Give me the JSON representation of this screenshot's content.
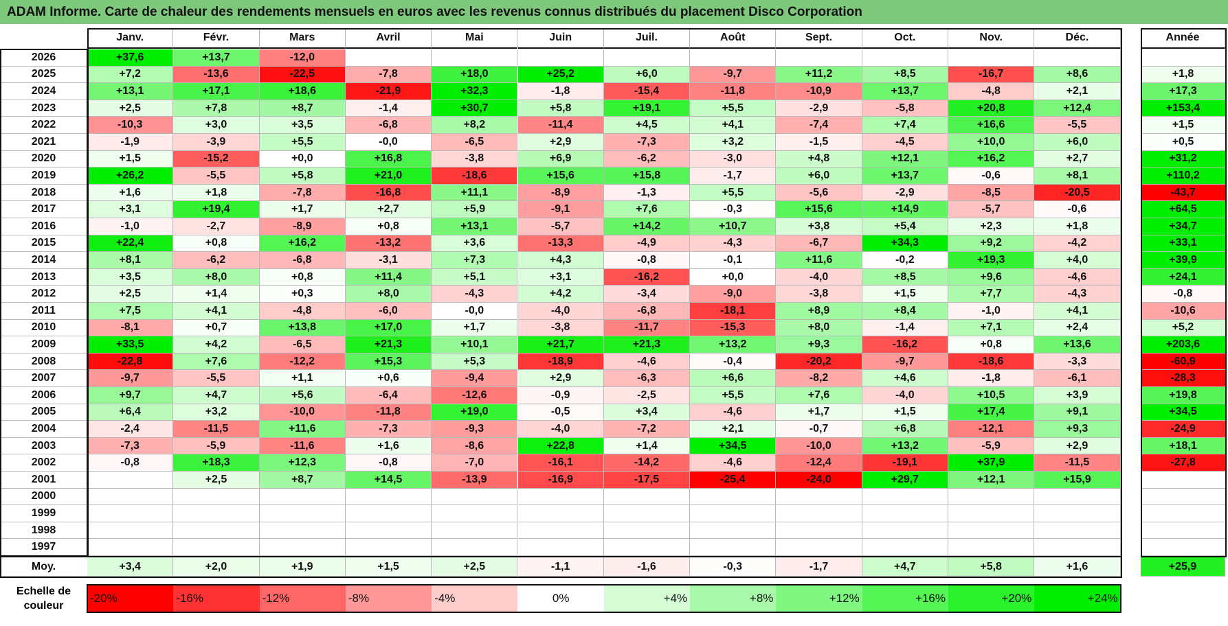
{
  "title": "ADAM Informe. Carte de chaleur des rendements mensuels en euros avec les revenus connus distribués du placement Disco Corporation",
  "colors": {
    "title_bg": "#7dc87a",
    "positive_max": "#00ee00",
    "negative_max": "#ff0000",
    "neutral": "#ffffff"
  },
  "chart_data": {
    "type": "heatmap",
    "title": "ADAM Informe. Carte de chaleur des rendements mensuels en euros avec les revenus connus distribués du placement Disco Corporation",
    "months": [
      "Janv.",
      "Févr.",
      "Mars",
      "Avril",
      "Mai",
      "Juin",
      "Juil.",
      "Août",
      "Sept.",
      "Oct.",
      "Nov.",
      "Déc."
    ],
    "year_header": "Année",
    "rows": [
      {
        "year": "2026",
        "values": [
          "+37,6",
          "+13,7",
          "-12,0",
          "",
          "",
          "",
          "",
          "",
          "",
          "",
          "",
          ""
        ],
        "annual": ""
      },
      {
        "year": "2025",
        "values": [
          "+7,2",
          "-13,6",
          "-22,5",
          "-7,8",
          "+18,0",
          "+25,2",
          "+6,0",
          "-9,7",
          "+11,2",
          "+8,5",
          "-16,7",
          "+8,6"
        ],
        "annual": "+1,8"
      },
      {
        "year": "2024",
        "values": [
          "+13,1",
          "+17,1",
          "+18,6",
          "-21,9",
          "+32,3",
          "-1,8",
          "-15,4",
          "-11,8",
          "-10,9",
          "+13,7",
          "-4,8",
          "+2,1"
        ],
        "annual": "+17,3"
      },
      {
        "year": "2023",
        "values": [
          "+2,5",
          "+7,8",
          "+8,7",
          "-1,4",
          "+30,7",
          "+5,8",
          "+19,1",
          "+5,5",
          "-2,9",
          "-5,8",
          "+20,8",
          "+12,4"
        ],
        "annual": "+153,4"
      },
      {
        "year": "2022",
        "values": [
          "-10,3",
          "+3,0",
          "+3,5",
          "-6,8",
          "+8,2",
          "-11,4",
          "+4,5",
          "+4,1",
          "-7,4",
          "+7,4",
          "+16,6",
          "-5,5"
        ],
        "annual": "+1,5"
      },
      {
        "year": "2021",
        "values": [
          "-1,9",
          "-3,9",
          "+5,5",
          "-0,0",
          "-6,5",
          "+2,9",
          "-7,3",
          "+3,2",
          "-1,5",
          "-4,5",
          "+10,0",
          "+6,0"
        ],
        "annual": "+0,5"
      },
      {
        "year": "2020",
        "values": [
          "+1,5",
          "-15,2",
          "+0,0",
          "+16,8",
          "-3,8",
          "+6,9",
          "-6,2",
          "-3,0",
          "+4,8",
          "+12,1",
          "+16,2",
          "+2,7"
        ],
        "annual": "+31,2"
      },
      {
        "year": "2019",
        "values": [
          "+26,2",
          "-5,5",
          "+5,8",
          "+21,0",
          "-18,6",
          "+15,6",
          "+15,8",
          "-1,7",
          "+6,0",
          "+13,7",
          "-0,6",
          "+8,1"
        ],
        "annual": "+110,2"
      },
      {
        "year": "2018",
        "values": [
          "+1,6",
          "+1,8",
          "-7,8",
          "-16,8",
          "+11,1",
          "-8,9",
          "-1,3",
          "+5,5",
          "-5,6",
          "-2,9",
          "-8,5",
          "-20,5"
        ],
        "annual": "-43,7"
      },
      {
        "year": "2017",
        "values": [
          "+3,1",
          "+19,4",
          "+1,7",
          "+2,7",
          "+5,9",
          "-9,1",
          "+7,6",
          "-0,3",
          "+15,6",
          "+14,9",
          "-5,7",
          "-0,6"
        ],
        "annual": "+64,5"
      },
      {
        "year": "2016",
        "values": [
          "-1,0",
          "-2,7",
          "-8,9",
          "+0,8",
          "+13,1",
          "-5,7",
          "+14,2",
          "+10,7",
          "+3,8",
          "+5,4",
          "+2,3",
          "+1,8"
        ],
        "annual": "+34,7"
      },
      {
        "year": "2015",
        "values": [
          "+22,4",
          "+0,8",
          "+16,2",
          "-13,2",
          "+3,6",
          "-13,3",
          "-4,9",
          "-4,3",
          "-6,7",
          "+34,3",
          "+9,2",
          "-4,2"
        ],
        "annual": "+33,1"
      },
      {
        "year": "2014",
        "values": [
          "+8,1",
          "-6,2",
          "-6,8",
          "-3,1",
          "+7,3",
          "+4,3",
          "-0,8",
          "-0,1",
          "+11,6",
          "-0,2",
          "+19,3",
          "+4,0"
        ],
        "annual": "+39,9"
      },
      {
        "year": "2013",
        "values": [
          "+3,5",
          "+8,0",
          "+0,8",
          "+11,4",
          "+5,1",
          "+3,1",
          "-16,2",
          "+0,0",
          "-4,0",
          "+8,5",
          "+9,6",
          "-4,6"
        ],
        "annual": "+24,1"
      },
      {
        "year": "2012",
        "values": [
          "+2,5",
          "+1,4",
          "+0,3",
          "+8,0",
          "-4,3",
          "+4,2",
          "-3,4",
          "-9,0",
          "-3,8",
          "+1,5",
          "+7,7",
          "-4,3"
        ],
        "annual": "-0,8"
      },
      {
        "year": "2011",
        "values": [
          "+7,5",
          "+4,1",
          "-4,8",
          "-6,0",
          "-0,0",
          "-4,0",
          "-6,8",
          "-18,1",
          "+8,9",
          "+8,4",
          "-1,0",
          "+4,1"
        ],
        "annual": "-10,6"
      },
      {
        "year": "2010",
        "values": [
          "-8,1",
          "+0,7",
          "+13,8",
          "+17,0",
          "+1,7",
          "-3,8",
          "-11,7",
          "-15,3",
          "+8,0",
          "-1,4",
          "+7,1",
          "+2,4"
        ],
        "annual": "+5,2"
      },
      {
        "year": "2009",
        "values": [
          "+33,5",
          "+4,2",
          "-6,5",
          "+21,3",
          "+10,1",
          "+21,7",
          "+21,3",
          "+13,2",
          "+9,3",
          "-16,2",
          "+0,8",
          "+13,6"
        ],
        "annual": "+203,6"
      },
      {
        "year": "2008",
        "values": [
          "-22,8",
          "+7,6",
          "-12,2",
          "+15,3",
          "+5,3",
          "-18,9",
          "-4,6",
          "-0,4",
          "-20,2",
          "-9,7",
          "-18,6",
          "-3,3"
        ],
        "annual": "-60,9"
      },
      {
        "year": "2007",
        "values": [
          "-9,7",
          "-5,5",
          "+1,1",
          "+0,6",
          "-9,4",
          "+2,9",
          "-6,3",
          "+6,6",
          "-8,2",
          "+4,6",
          "-1,8",
          "-6,1"
        ],
        "annual": "-28,3"
      },
      {
        "year": "2006",
        "values": [
          "+9,7",
          "+4,7",
          "+5,6",
          "-6,4",
          "-12,6",
          "-0,9",
          "-2,5",
          "+5,5",
          "+7,6",
          "-4,0",
          "+10,5",
          "+3,9"
        ],
        "annual": "+19,8"
      },
      {
        "year": "2005",
        "values": [
          "+6,4",
          "+3,2",
          "-10,0",
          "-11,8",
          "+19,0",
          "-0,5",
          "+3,4",
          "-4,6",
          "+1,7",
          "+1,5",
          "+17,4",
          "+9,1"
        ],
        "annual": "+34,5"
      },
      {
        "year": "2004",
        "values": [
          "-2,4",
          "-11,5",
          "+11,6",
          "-7,3",
          "-9,3",
          "-4,0",
          "-7,2",
          "+2,1",
          "-0,7",
          "+6,8",
          "-12,1",
          "+9,3"
        ],
        "annual": "-24,9"
      },
      {
        "year": "2003",
        "values": [
          "-7,3",
          "-5,9",
          "-11,6",
          "+1,6",
          "-8,6",
          "+22,8",
          "+1,4",
          "+34,5",
          "-10,0",
          "+13,2",
          "-5,9",
          "+2,9"
        ],
        "annual": "+18,1"
      },
      {
        "year": "2002",
        "values": [
          "-0,8",
          "+18,3",
          "+12,3",
          "-0,8",
          "-7,0",
          "-16,1",
          "-14,2",
          "-4,6",
          "-12,4",
          "-19,1",
          "+37,9",
          "-11,5"
        ],
        "annual": "-27,8"
      },
      {
        "year": "2001",
        "values": [
          "",
          "+2,5",
          "+8,7",
          "+14,5",
          "-13,9",
          "-16,9",
          "-17,5",
          "-25,4",
          "-24,0",
          "+29,7",
          "+12,1",
          "+15,9"
        ],
        "annual": ""
      },
      {
        "year": "2000",
        "values": [
          "",
          "",
          "",
          "",
          "",
          "",
          "",
          "",
          "",
          "",
          "",
          ""
        ],
        "annual": ""
      },
      {
        "year": "1999",
        "values": [
          "",
          "",
          "",
          "",
          "",
          "",
          "",
          "",
          "",
          "",
          "",
          ""
        ],
        "annual": ""
      },
      {
        "year": "1998",
        "values": [
          "",
          "",
          "",
          "",
          "",
          "",
          "",
          "",
          "",
          "",
          "",
          ""
        ],
        "annual": ""
      },
      {
        "year": "1997",
        "values": [
          "",
          "",
          "",
          "",
          "",
          "",
          "",
          "",
          "",
          "",
          "",
          ""
        ],
        "annual": ""
      }
    ],
    "average": {
      "label": "Moy.",
      "values": [
        "+3,4",
        "+2,0",
        "+1,9",
        "+1,5",
        "+2,5",
        "-1,1",
        "-1,6",
        "-0,3",
        "-1,7",
        "+4,7",
        "+5,8",
        "+1,6"
      ],
      "annual": "+25,9"
    },
    "scale": {
      "label_line1": "Echelle de",
      "label_line2": "couleur",
      "labels": [
        "-20%",
        "-16%",
        "-12%",
        "-8%",
        "-4%",
        "0%",
        "+4%",
        "+8%",
        "+12%",
        "+16%",
        "+20%",
        "+24%"
      ],
      "values": [
        -20,
        -16,
        -12,
        -8,
        -4,
        0,
        4,
        8,
        12,
        16,
        20,
        24
      ]
    }
  }
}
